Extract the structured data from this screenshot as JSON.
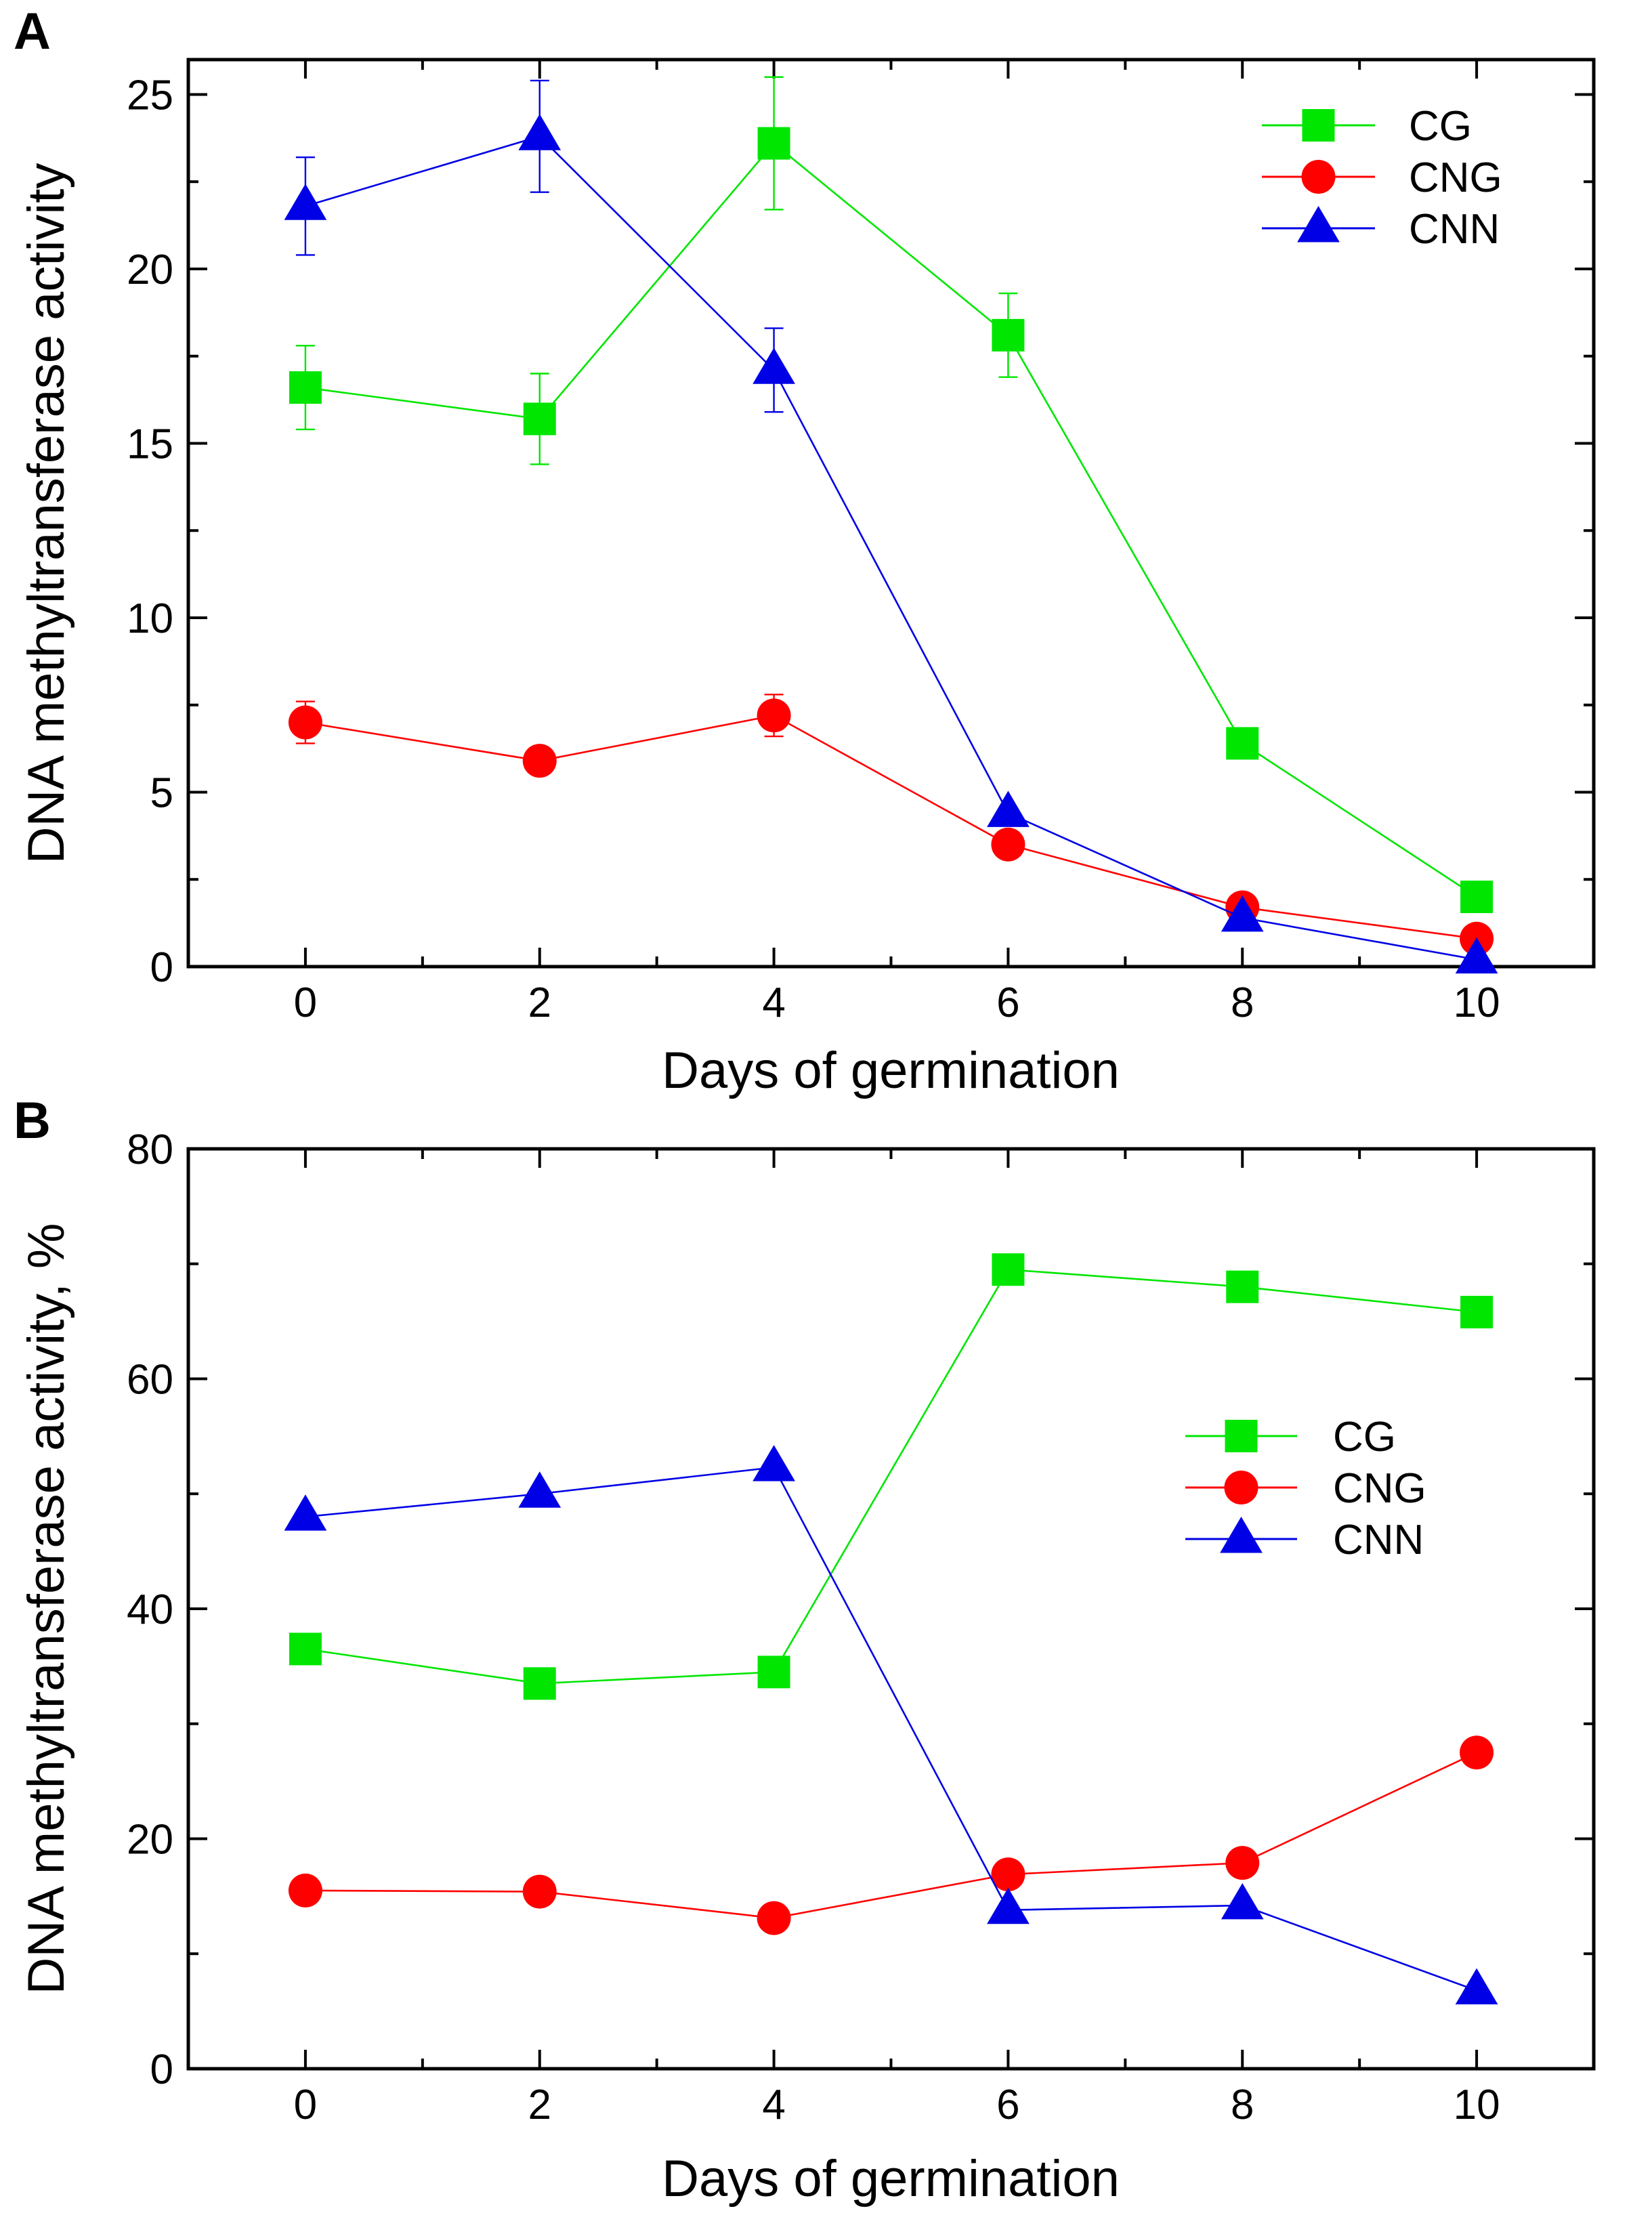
{
  "chart_data": [
    {
      "type": "line",
      "panel_label": "A",
      "title": "",
      "xlabel": "Days of germination",
      "ylabel": "DNA methyltransferase activity",
      "xlim": [
        -1,
        11
      ],
      "ylim": [
        0,
        26
      ],
      "x_ticks": [
        0,
        2,
        4,
        6,
        8,
        10
      ],
      "x_minor_ticks": [
        1,
        3,
        5,
        7,
        9
      ],
      "y_ticks": [
        0,
        5,
        10,
        15,
        20,
        25
      ],
      "y_minor_ticks": [
        2.5,
        7.5,
        12.5,
        17.5,
        22.5
      ],
      "legend_position": "top-right",
      "series": [
        {
          "name": "CG",
          "color": "#00e600",
          "marker": "square",
          "dashed": [
            0,
            1
          ],
          "x": [
            0,
            2,
            4,
            6,
            8,
            10
          ],
          "y": [
            16.6,
            15.7,
            23.6,
            18.1,
            6.4,
            2.0
          ],
          "err": [
            1.2,
            1.3,
            1.9,
            1.2,
            0,
            0
          ]
        },
        {
          "name": "CNG",
          "color": "#ff0000",
          "marker": "circle",
          "dashed": [],
          "x": [
            0,
            2,
            4,
            6,
            8,
            10
          ],
          "y": [
            7.0,
            5.9,
            7.2,
            3.5,
            1.7,
            0.8
          ],
          "err": [
            0.6,
            0,
            0.6,
            0,
            0,
            0
          ]
        },
        {
          "name": "CNN",
          "color": "#0000e6",
          "marker": "triangle",
          "dashed": [],
          "x": [
            0,
            2,
            4,
            6,
            8,
            10
          ],
          "y": [
            21.8,
            23.8,
            17.1,
            4.4,
            1.4,
            0.2
          ],
          "err": [
            1.4,
            1.6,
            1.2,
            0,
            0,
            0
          ]
        }
      ]
    },
    {
      "type": "line",
      "panel_label": "B",
      "title": "",
      "xlabel": "Days of germination",
      "ylabel": "DNA methyltransferase activity, %",
      "xlim": [
        -1,
        11
      ],
      "ylim": [
        0,
        80
      ],
      "x_ticks": [
        0,
        2,
        4,
        6,
        8,
        10
      ],
      "x_minor_ticks": [
        1,
        3,
        5,
        7,
        9
      ],
      "y_ticks": [
        0,
        20,
        40,
        60,
        80
      ],
      "y_minor_ticks": [
        10,
        30,
        50,
        70
      ],
      "legend_position": "center-right",
      "series": [
        {
          "name": "CG",
          "color": "#00e600",
          "marker": "square",
          "dashed": [
            0,
            4
          ],
          "x": [
            0,
            2,
            4,
            6,
            8,
            10
          ],
          "y": [
            36.5,
            33.5,
            34.5,
            69.5,
            68.0,
            65.8
          ],
          "err": [
            0,
            0,
            0,
            0,
            0,
            0
          ]
        },
        {
          "name": "CNG",
          "color": "#ff0000",
          "marker": "circle",
          "dashed": [
            3,
            4
          ],
          "x": [
            0,
            2,
            4,
            6,
            8,
            10
          ],
          "y": [
            15.5,
            15.4,
            13.1,
            16.9,
            17.9,
            27.5
          ],
          "err": [
            0,
            0,
            0,
            0,
            0,
            0
          ]
        },
        {
          "name": "CNN",
          "color": "#0000e6",
          "marker": "triangle",
          "dashed": [],
          "x": [
            0,
            2,
            4,
            6,
            8,
            10
          ],
          "y": [
            48.0,
            50.0,
            52.3,
            13.8,
            14.2,
            6.8
          ],
          "err": [
            0,
            0,
            0,
            0,
            0,
            0
          ]
        }
      ]
    }
  ]
}
